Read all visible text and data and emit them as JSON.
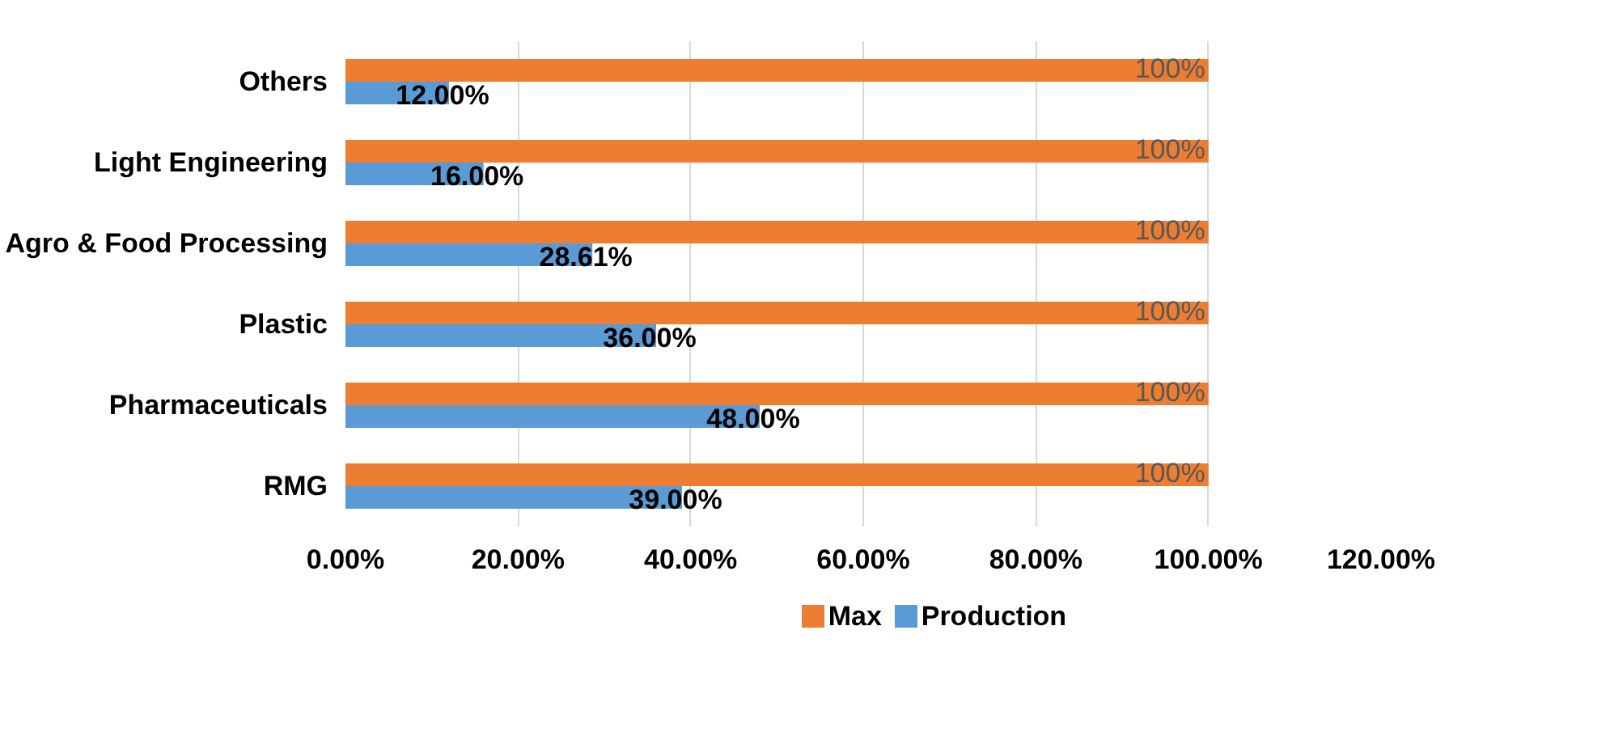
{
  "chart_data": {
    "type": "bar",
    "orientation": "horizontal",
    "categories": [
      "Others",
      "Light Engineering",
      "Agro & Food Processing",
      "Plastic",
      "Pharmaceuticals",
      "RMG"
    ],
    "series": [
      {
        "name": "Max",
        "color": "#ed7d31",
        "values": [
          100,
          100,
          100,
          100,
          100,
          100
        ],
        "value_labels": [
          "100%",
          "100%",
          "100%",
          "100%",
          "100%",
          "100%"
        ]
      },
      {
        "name": "Production",
        "color": "#5b9bd5",
        "values": [
          12,
          16,
          28.61,
          36,
          48,
          39
        ],
        "value_labels": [
          "12.00%",
          "16.00%",
          "28.61%",
          "36.00%",
          "48.00%",
          "39.00%"
        ]
      }
    ],
    "xlim": [
      0,
      120
    ],
    "xticks": [
      {
        "value": 0,
        "label": "0.00%"
      },
      {
        "value": 20,
        "label": "20.00%"
      },
      {
        "value": 40,
        "label": "40.00%"
      },
      {
        "value": 60,
        "label": "60.00%"
      },
      {
        "value": 80,
        "label": "80.00%"
      },
      {
        "value": 100,
        "label": "100.00%"
      },
      {
        "value": 120,
        "label": "120.00%"
      }
    ],
    "grid": "x",
    "legend": "bottom"
  }
}
